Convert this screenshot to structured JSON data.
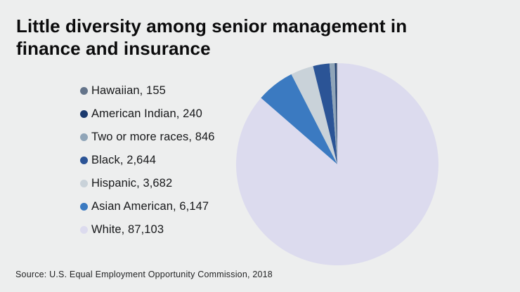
{
  "header": {
    "title": "Little diversity among senior management in finance and insurance"
  },
  "source": {
    "text": "Source: U.S. Equal Employment Opportunity Commission, 2018"
  },
  "colors": {
    "background": "#edeeee",
    "title_text": "#0b0b0c",
    "legend_text": "#17181a",
    "source_text": "#232425"
  },
  "chart_data": {
    "type": "pie",
    "title": "Little diversity among senior management in finance and insurance",
    "total": 100817,
    "legend_position": "left",
    "start_angle": "12 o'clock",
    "direction": "largest slice (White) starts at top and sweeps clockwise; remaining slices stack counterclockwise from top in legend order (smallest nearest 12 o'clock)",
    "slices": [
      {
        "label": "Hawaiian",
        "value": 155,
        "display": "Hawaiian, 155",
        "color": "#64748a"
      },
      {
        "label": "American Indian",
        "value": 240,
        "display": "American Indian, 240",
        "color": "#1b3a6e"
      },
      {
        "label": "Two or more races",
        "value": 846,
        "display": "Two or more races, 846",
        "color": "#90a5b8"
      },
      {
        "label": "Black",
        "value": 2644,
        "display": "Black, 2,644",
        "color": "#2b5496"
      },
      {
        "label": "Hispanic",
        "value": 3682,
        "display": "Hispanic, 3,682",
        "color": "#c9d2d9"
      },
      {
        "label": "Asian American",
        "value": 6147,
        "display": "Asian American, 6,147",
        "color": "#3b7ac1"
      },
      {
        "label": "White",
        "value": 87103,
        "display": "White, 87,103",
        "color": "#dcdbee"
      }
    ]
  }
}
